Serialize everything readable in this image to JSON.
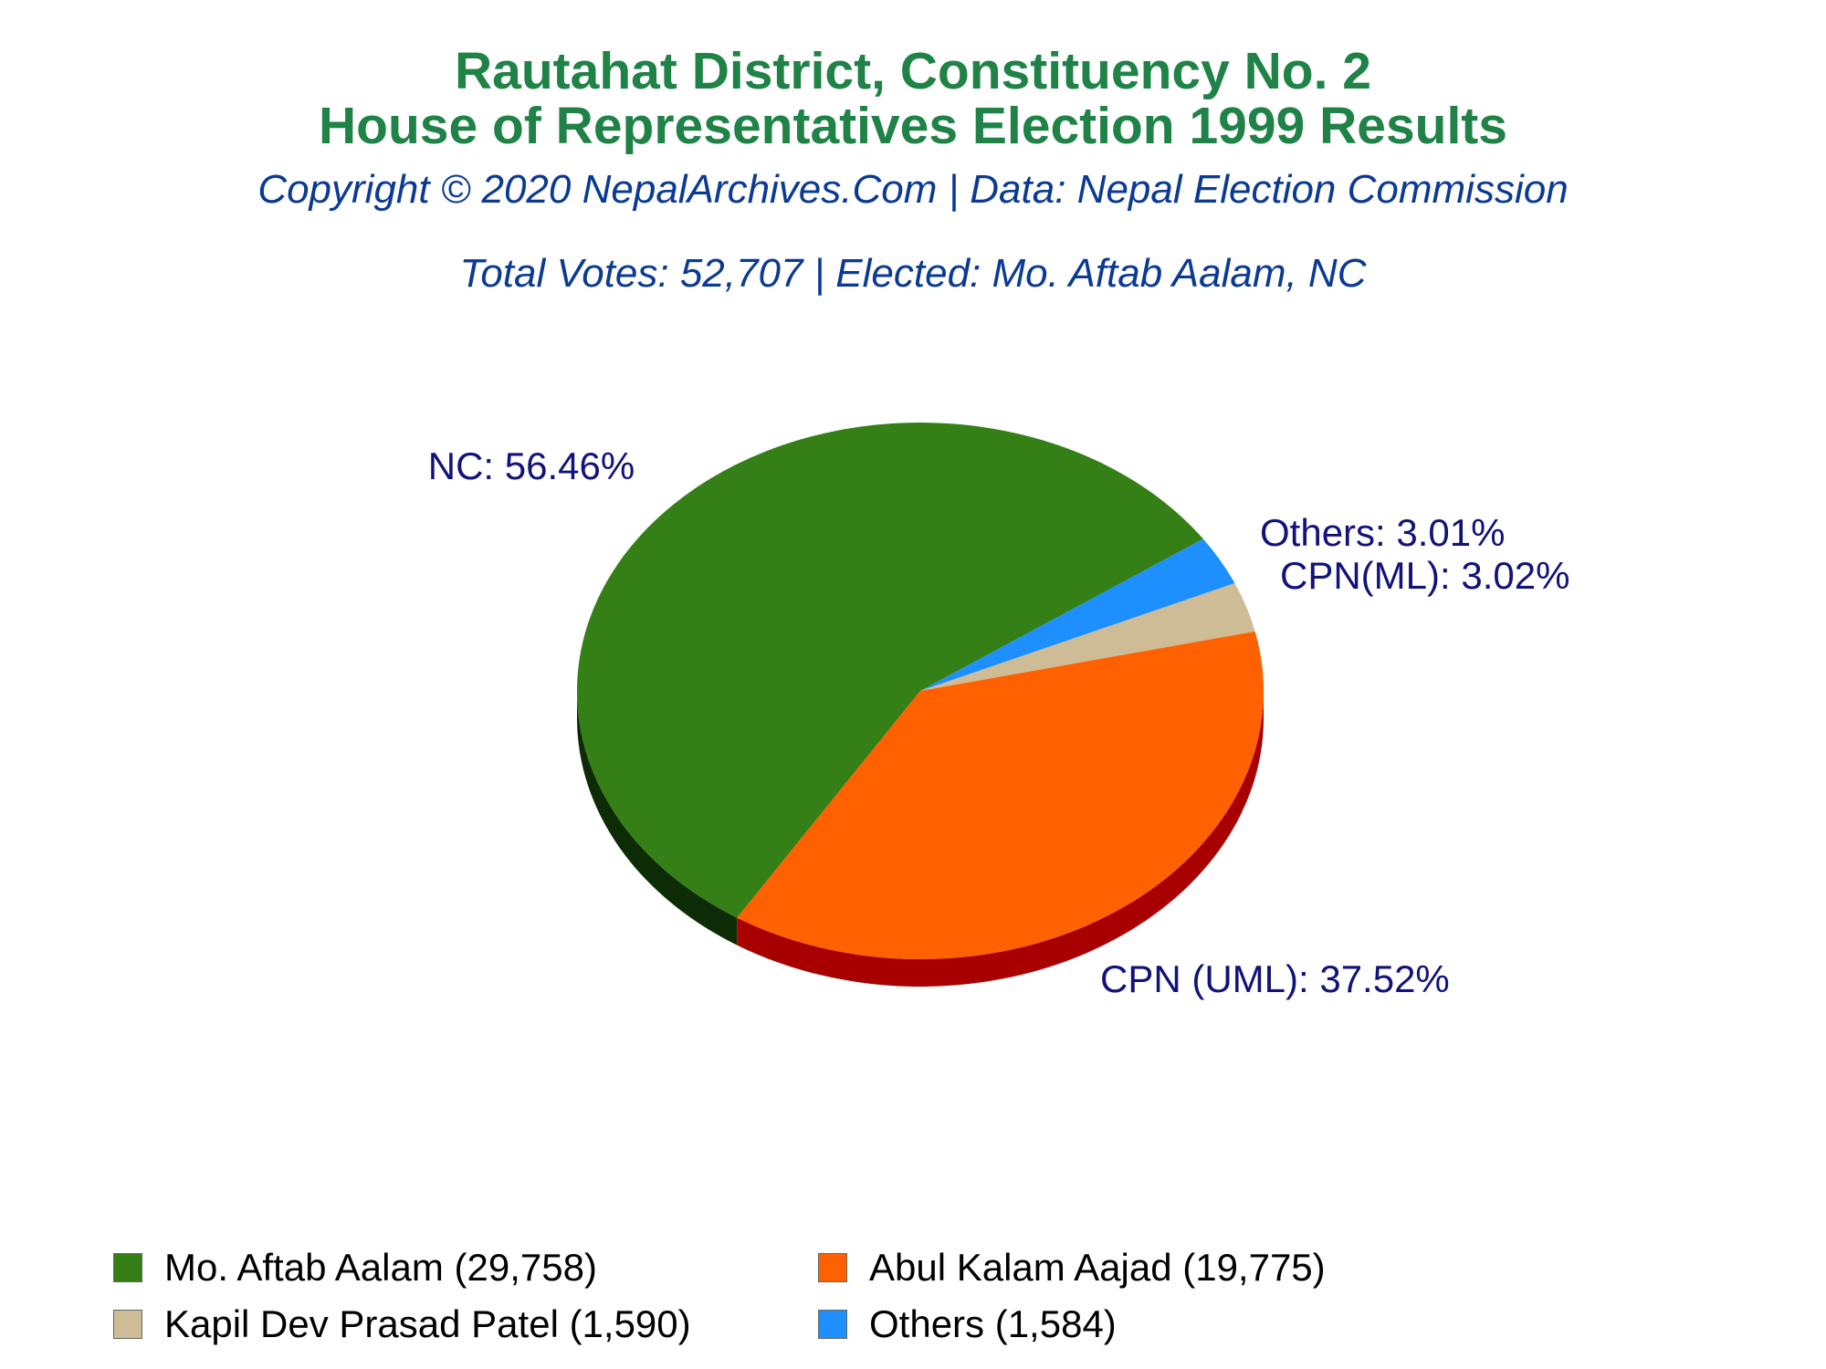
{
  "header": {
    "title_line1": "Rautahat District, Constituency No. 2",
    "title_line2": "House of Representatives Election 1999 Results",
    "copyright": "Copyright © 2020 NepalArchives.Com | Data: Nepal Election Commission",
    "summary": "Total Votes: 52,707 | Elected: Mo. Aftab Aalam, NC"
  },
  "chart_data": {
    "type": "pie",
    "title": "Rautahat District, Constituency No. 2 House of Representatives Election 1999 Results",
    "total_votes": 52707,
    "slices": [
      {
        "party": "NC",
        "label": "NC: 56.46%",
        "percent": 56.46,
        "votes": 29758,
        "legend": "Mo. Aftab Aalam (29,758)",
        "color": "#358016",
        "side_color": "#0d2b05"
      },
      {
        "party": "CPN (UML)",
        "label": "CPN (UML): 37.52%",
        "percent": 37.52,
        "votes": 19775,
        "legend": "Abul Kalam Aajad (19,775)",
        "color": "#ff6000",
        "side_color": "#a80000"
      },
      {
        "party": "CPN(ML)",
        "label": "CPN(ML): 3.02%",
        "percent": 3.02,
        "votes": 1590,
        "legend": "Kapil Dev Prasad Patel (1,590)",
        "color": "#cdbc95",
        "side_color": "#8a7d60"
      },
      {
        "party": "Others",
        "label": "Others: 3.01%",
        "percent": 3.01,
        "votes": 1584,
        "legend": "Others (1,584)",
        "color": "#1e8fff",
        "side_color": "#0c4f99"
      }
    ],
    "legend_placement": "bottom"
  }
}
